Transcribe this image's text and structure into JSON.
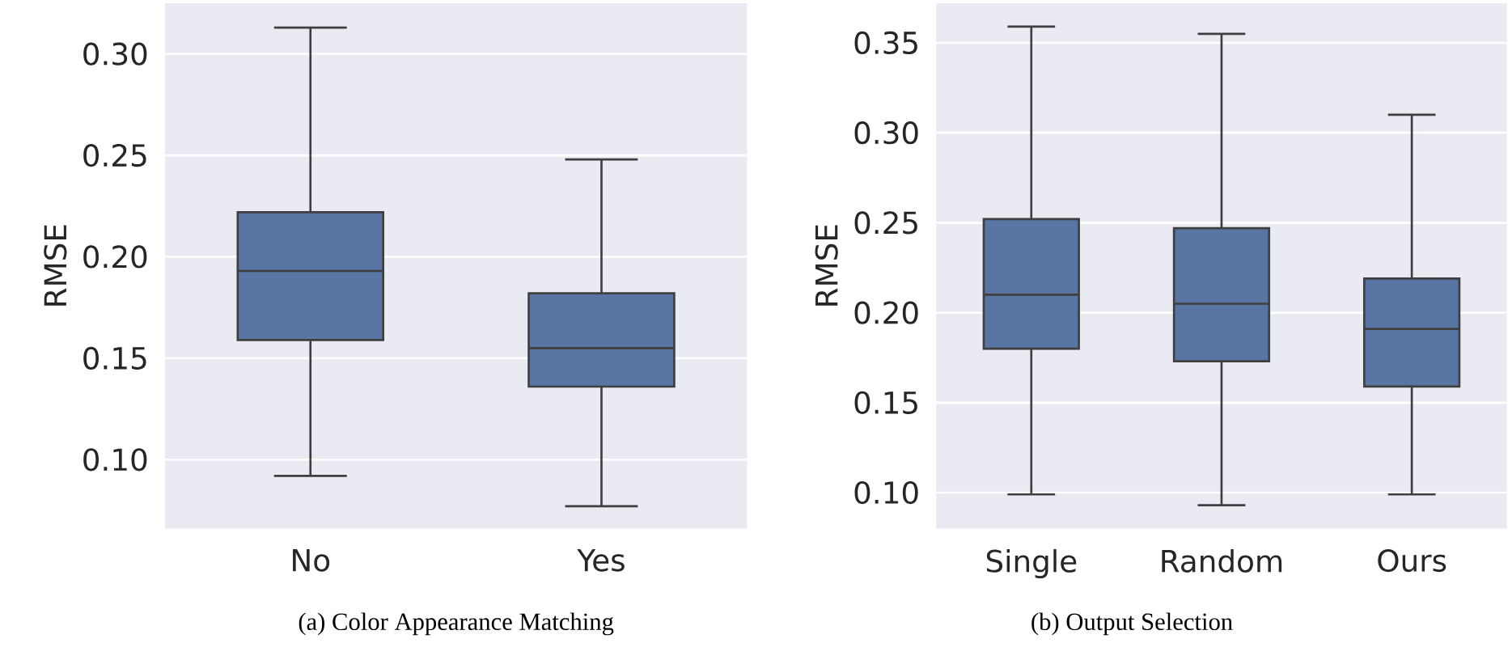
{
  "chart_data": [
    {
      "type": "box",
      "title": "(a) Color Appearance Matching",
      "ylabel": "RMSE",
      "categories": [
        "No",
        "Yes"
      ],
      "color": "#5875a4",
      "grid": "y",
      "boxes": [
        {
          "low": 0.092,
          "q1": 0.159,
          "median": 0.193,
          "q3": 0.222,
          "high": 0.313
        },
        {
          "low": 0.077,
          "q1": 0.136,
          "median": 0.155,
          "q3": 0.182,
          "high": 0.248
        }
      ],
      "ylim": [
        0.066,
        0.325
      ],
      "yticks": [
        {
          "value": 0.1,
          "label": "0.10"
        },
        0.15,
        {
          "value": 0.2,
          "label": "0.20"
        },
        0.25,
        {
          "value": 0.3,
          "label": "0.30"
        }
      ]
    },
    {
      "type": "box",
      "title": "(b) Output Selection",
      "ylabel": "RMSE",
      "categories": [
        "Single",
        "Random",
        "Ours"
      ],
      "color": "#5875a4",
      "grid": "y",
      "boxes": [
        {
          "low": 0.099,
          "q1": 0.18,
          "median": 0.21,
          "q3": 0.252,
          "high": 0.359
        },
        {
          "low": 0.093,
          "q1": 0.173,
          "median": 0.205,
          "q3": 0.247,
          "high": 0.355
        },
        {
          "low": 0.099,
          "q1": 0.159,
          "median": 0.191,
          "q3": 0.219,
          "high": 0.31
        }
      ],
      "ylim": [
        0.08,
        0.372
      ],
      "yticks": [
        {
          "value": 0.1,
          "label": "0.10"
        },
        0.15,
        {
          "value": 0.2,
          "label": "0.20"
        },
        0.25,
        {
          "value": 0.3,
          "label": "0.30"
        },
        0.35
      ]
    }
  ]
}
